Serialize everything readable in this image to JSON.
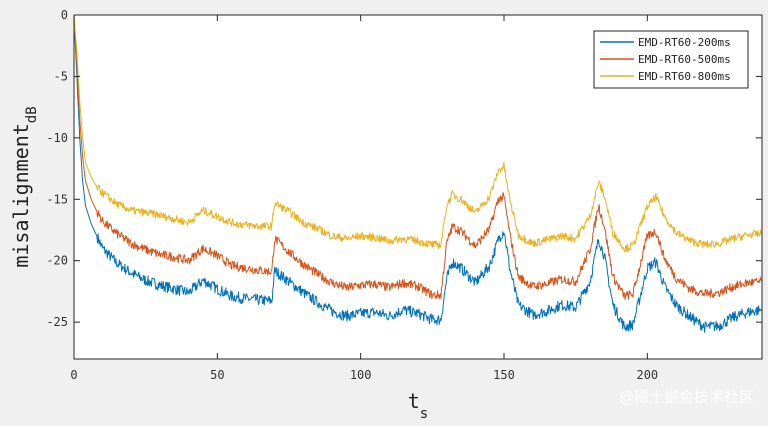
{
  "chart_data": {
    "type": "line",
    "title": "",
    "xlabel": "t",
    "xlabel_sub": "s",
    "ylabel": "misalignment",
    "ylabel_sub": "dB",
    "xlim": [
      0,
      240
    ],
    "ylim": [
      -28,
      0
    ],
    "xticks": [
      0,
      50,
      100,
      150,
      200
    ],
    "yticks": [
      0,
      -5,
      -10,
      -15,
      -20,
      -25
    ],
    "grid": false,
    "legend_position": "top-right",
    "x": [
      0,
      1,
      2,
      3,
      4,
      6,
      8,
      10,
      15,
      20,
      25,
      30,
      35,
      40,
      45,
      50,
      55,
      60,
      65,
      69,
      70,
      75,
      80,
      85,
      90,
      95,
      100,
      105,
      110,
      115,
      120,
      125,
      128,
      130,
      132,
      135,
      140,
      145,
      148,
      150,
      152,
      155,
      160,
      165,
      170,
      175,
      180,
      183,
      185,
      188,
      192,
      195,
      200,
      203,
      206,
      210,
      215,
      220,
      225,
      230,
      235,
      240
    ],
    "series": [
      {
        "name": "EMD-RT60-200ms",
        "color": "#0072bd",
        "values": [
          0,
          -5,
          -10,
          -13.5,
          -15.5,
          -17,
          -18,
          -19,
          -20.2,
          -21,
          -21.6,
          -22,
          -22.3,
          -22.6,
          -21.6,
          -22.3,
          -22.9,
          -23.1,
          -23.2,
          -23.3,
          -20.8,
          -21.7,
          -22.6,
          -23.4,
          -24.1,
          -24.5,
          -24.3,
          -24.2,
          -24.5,
          -24.0,
          -24.3,
          -24.8,
          -24.8,
          -21.5,
          -20.1,
          -20.6,
          -21.8,
          -20.4,
          -18.3,
          -17.5,
          -20.6,
          -23.6,
          -24.4,
          -24.1,
          -23.6,
          -23.8,
          -21.7,
          -18.2,
          -19.6,
          -23.6,
          -25.4,
          -25.2,
          -20.6,
          -20.1,
          -22.1,
          -23.6,
          -24.6,
          -25.4,
          -25.3,
          -24.6,
          -24.2,
          -24.0
        ]
      },
      {
        "name": "EMD-RT60-500ms",
        "color": "#d95319",
        "values": [
          0,
          -4,
          -8.5,
          -11.5,
          -13.5,
          -15,
          -16,
          -16.8,
          -17.8,
          -18.6,
          -19.1,
          -19.5,
          -19.7,
          -20.0,
          -19.0,
          -19.6,
          -20.4,
          -20.6,
          -20.8,
          -20.9,
          -18.2,
          -19.3,
          -20.3,
          -21.1,
          -21.8,
          -22.2,
          -22.0,
          -21.9,
          -22.2,
          -21.8,
          -22.1,
          -22.8,
          -22.8,
          -18.6,
          -17.2,
          -17.6,
          -18.8,
          -17.4,
          -15.0,
          -14.8,
          -17.8,
          -21.3,
          -22.1,
          -21.9,
          -21.5,
          -21.7,
          -19.1,
          -15.5,
          -17.2,
          -21.3,
          -22.9,
          -22.7,
          -18.0,
          -17.6,
          -19.8,
          -21.4,
          -22.3,
          -22.7,
          -22.6,
          -22.1,
          -21.8,
          -21.7
        ]
      },
      {
        "name": "EMD-RT60-800ms",
        "color": "#edb120",
        "values": [
          0,
          -3,
          -7,
          -10,
          -12,
          -13.2,
          -14,
          -14.5,
          -15.4,
          -15.9,
          -16.1,
          -16.3,
          -16.6,
          -16.9,
          -15.9,
          -16.4,
          -16.9,
          -17.1,
          -17.2,
          -17.2,
          -15.3,
          -16.0,
          -16.9,
          -17.4,
          -18.0,
          -18.2,
          -18.0,
          -18.1,
          -18.4,
          -18.2,
          -18.4,
          -18.7,
          -18.7,
          -15.5,
          -14.6,
          -15.0,
          -16.1,
          -14.8,
          -12.7,
          -12.3,
          -15.0,
          -17.9,
          -18.6,
          -18.3,
          -18.0,
          -18.2,
          -16.4,
          -13.6,
          -14.7,
          -17.7,
          -19.0,
          -18.8,
          -15.6,
          -14.8,
          -16.4,
          -17.7,
          -18.4,
          -18.7,
          -18.6,
          -18.2,
          -17.9,
          -17.8
        ]
      }
    ]
  },
  "watermark": "@稀土掘金技术社区"
}
